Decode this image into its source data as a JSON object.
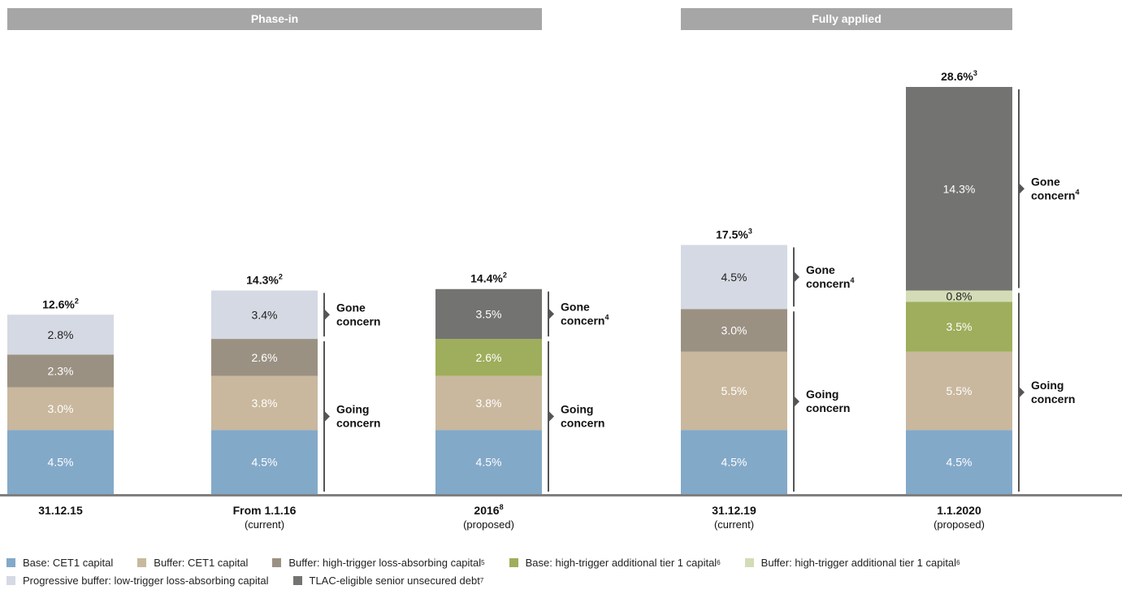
{
  "chart_data": {
    "type": "bar",
    "stacked": true,
    "phases": [
      {
        "label": "Phase-in",
        "categories": [
          0,
          1,
          2
        ]
      },
      {
        "label": "Fully applied",
        "categories": [
          3,
          4
        ]
      }
    ],
    "categories": [
      {
        "label": "31.12.15",
        "sup": "",
        "sub": ""
      },
      {
        "label": "From 1.1.16",
        "sup": "",
        "sub": "(current)"
      },
      {
        "label": "2016",
        "sup": "8",
        "sub": "(proposed)"
      },
      {
        "label": "31.12.19",
        "sup": "",
        "sub": "(current)"
      },
      {
        "label": "1.1.2020",
        "sup": "",
        "sub": "(proposed)"
      }
    ],
    "series": [
      {
        "name": "Base: CET1 capital",
        "sup": "",
        "color": "#83a9c9",
        "values": [
          4.5,
          4.5,
          4.5,
          4.5,
          4.5
        ],
        "labels": [
          "4.5%",
          "4.5%",
          "4.5%",
          "4.5%",
          "4.5%"
        ],
        "label_dark": false
      },
      {
        "name": "Buffer: CET1 capital",
        "sup": "",
        "color": "#c9b89e",
        "values": [
          3.0,
          3.8,
          3.8,
          5.5,
          5.5
        ],
        "labels": [
          "3.0%",
          "3.8%",
          "3.8%",
          "5.5%",
          "5.5%"
        ],
        "label_dark": false
      },
      {
        "name": "Buffer: high-trigger loss-absorbing capital",
        "sup": "5",
        "color": "#9b9183",
        "values": [
          2.3,
          2.6,
          0,
          3.0,
          0
        ],
        "labels": [
          "2.3%",
          "2.6%",
          "",
          "3.0%",
          ""
        ],
        "label_dark": false
      },
      {
        "name": "Base: high-trigger additional tier 1 capital",
        "sup": "6",
        "color": "#9eae5c",
        "values": [
          0,
          0,
          2.6,
          0,
          3.5
        ],
        "labels": [
          "",
          "",
          "2.6%",
          "",
          "3.5%"
        ],
        "label_dark": false
      },
      {
        "name": "Buffer: high-trigger additional tier 1 capital",
        "sup": "6",
        "color": "#d3dcb7",
        "values": [
          0,
          0,
          0,
          0,
          0.8
        ],
        "labels": [
          "",
          "",
          "",
          "",
          "0.8%"
        ],
        "label_dark": true
      },
      {
        "name": "Progressive buffer: low-trigger loss-absorbing capital",
        "sup": "",
        "color": "#d5d9e3",
        "values": [
          2.8,
          3.4,
          0,
          4.5,
          0
        ],
        "labels": [
          "2.8%",
          "3.4%",
          "",
          "4.5%",
          ""
        ],
        "label_dark": true
      },
      {
        "name": "TLAC-eligible senior unsecured debt",
        "sup": "7",
        "color": "#737371",
        "values": [
          0,
          0,
          3.5,
          0,
          14.3
        ],
        "labels": [
          "",
          "",
          "3.5%",
          "",
          "14.3%"
        ],
        "label_dark": false
      }
    ],
    "totals": [
      {
        "value": "12.6%",
        "sup": "2"
      },
      {
        "value": "14.3%",
        "sup": "2"
      },
      {
        "value": "14.4%",
        "sup": "2"
      },
      {
        "value": "17.5%",
        "sup": "3"
      },
      {
        "value": "28.6%",
        "sup": "3"
      }
    ],
    "brackets": [
      {
        "category": 1,
        "from": 0,
        "to": 10.9,
        "line1": "Going",
        "line2": "concern",
        "sup": ""
      },
      {
        "category": 1,
        "from": 10.9,
        "to": 14.3,
        "line1": "Gone",
        "line2": "concern",
        "sup": ""
      },
      {
        "category": 2,
        "from": 0,
        "to": 10.9,
        "line1": "Going",
        "line2": "concern",
        "sup": ""
      },
      {
        "category": 2,
        "from": 10.9,
        "to": 14.4,
        "line1": "Gone",
        "line2": "concern",
        "sup": "4"
      },
      {
        "category": 3,
        "from": 0,
        "to": 13.0,
        "line1": "Going",
        "line2": "concern",
        "sup": ""
      },
      {
        "category": 3,
        "from": 13.0,
        "to": 17.5,
        "line1": "Gone",
        "line2": "concern",
        "sup": "4"
      },
      {
        "category": 4,
        "from": 0,
        "to": 14.3,
        "line1": "Going",
        "line2": "concern",
        "sup": ""
      },
      {
        "category": 4,
        "from": 14.3,
        "to": 28.6,
        "line1": "Gone",
        "line2": "concern",
        "sup": "4"
      }
    ],
    "legend_rows": [
      [
        0,
        1,
        2,
        3,
        4
      ],
      [
        5,
        6
      ]
    ],
    "ylim": [
      0,
      28.6
    ],
    "grid": false,
    "legend_position": "bottom"
  }
}
